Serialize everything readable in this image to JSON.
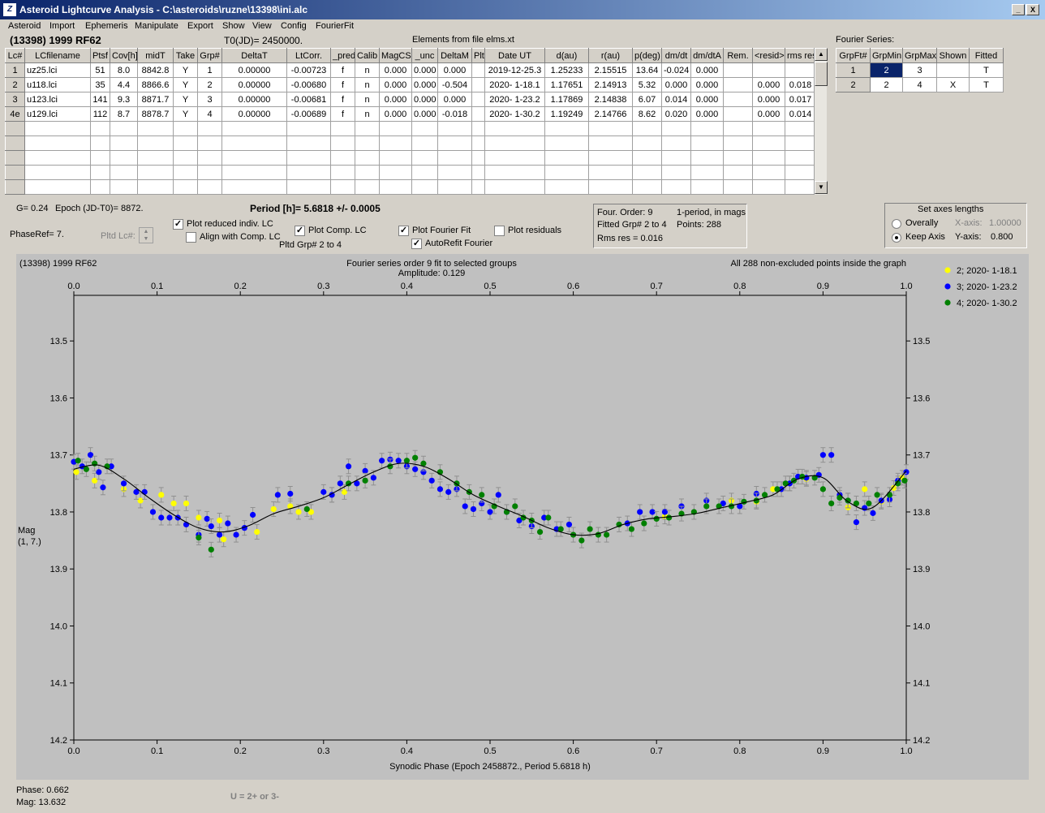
{
  "window": {
    "title": "Asteroid Lightcurve Analysis - C:\\asteroids\\ruzne\\13398\\ini.alc",
    "icon": "app-icon",
    "minimize": "_",
    "maximize": "□",
    "close": "X"
  },
  "menu": [
    "Asteroid",
    "Import",
    "Ephemeris",
    "Manipulate",
    "Export",
    "Show",
    "View",
    "Config",
    "FourierFit"
  ],
  "header": {
    "asteroid": "(13398) 1999 RF62",
    "t0": "T0(JD)= 2450000.",
    "elements": "Elements from file elms.xt",
    "fourier_series_label": "Fourier Series:"
  },
  "lc_table": {
    "columns": [
      "Lc#",
      "LCfilename",
      "Ptsf",
      "Cov[h]",
      "midT",
      "Take",
      "Grp#",
      "DeltaT",
      "LtCorr.",
      "_pred.",
      "Calib",
      "MagCS",
      "_unc",
      "DeltaM",
      "Plt",
      "Date UT",
      "d(au)",
      "r(au)",
      "p(deg)",
      "dm/dt",
      "dm/dtA",
      "Rem.",
      "<resid>",
      "rms res"
    ],
    "rows": [
      [
        "1",
        "uz25.lci",
        "51",
        "8.0",
        "8842.8",
        "Y",
        "1",
        "0.00000",
        "-0.00723",
        "f",
        "n",
        "0.000",
        "0.000",
        "0.000",
        "",
        "2019-12-25.3",
        "1.25233",
        "2.15515",
        "13.64",
        "-0.024",
        "0.000",
        "",
        "",
        ""
      ],
      [
        "2",
        "u118.lci",
        "35",
        "4.4",
        "8866.6",
        "Y",
        "2",
        "0.00000",
        "-0.00680",
        "f",
        "n",
        "0.000",
        "0.000",
        "-0.504",
        "",
        "2020- 1-18.1",
        "1.17651",
        "2.14913",
        "5.32",
        "0.000",
        "0.000",
        "",
        "0.000",
        "0.018"
      ],
      [
        "3",
        "u123.lci",
        "141",
        "9.3",
        "8871.7",
        "Y",
        "3",
        "0.00000",
        "-0.00681",
        "f",
        "n",
        "0.000",
        "0.000",
        "0.000",
        "",
        "2020- 1-23.2",
        "1.17869",
        "2.14838",
        "6.07",
        "0.014",
        "0.000",
        "",
        "0.000",
        "0.017"
      ],
      [
        "4e",
        "u129.lci",
        "112",
        "8.7",
        "8878.7",
        "Y",
        "4",
        "0.00000",
        "-0.00689",
        "f",
        "n",
        "0.000",
        "0.000",
        "-0.018",
        "",
        "2020- 1-30.2",
        "1.19249",
        "2.14766",
        "8.62",
        "0.020",
        "0.000",
        "",
        "0.000",
        "0.014"
      ]
    ],
    "empty_rows": 5
  },
  "fourier_table": {
    "columns": [
      "GrpFt#",
      "GrpMin",
      "GrpMax",
      "Shown",
      "Fitted"
    ],
    "rows": [
      [
        "1",
        "2",
        "3",
        "",
        "T"
      ],
      [
        "2",
        "2",
        "4",
        "X",
        "T"
      ]
    ]
  },
  "info": {
    "g": "G= 0.24",
    "epoch": "Epoch (JD-T0)= 8872.",
    "period": "Period [h]= 5.6818 +/- 0.0005",
    "phaseref": "PhaseRef= 7.",
    "pltd_lc": "Pltd Lc#:",
    "pltd_grp": "Pltd Grp#  2  to   4"
  },
  "checkboxes": [
    {
      "label": "Plot reduced indiv. LC",
      "checked": true
    },
    {
      "label": "Align with Comp. LC",
      "checked": false
    },
    {
      "label": "Plot Comp. LC",
      "checked": true
    },
    {
      "label": "Plot Fourier Fit",
      "checked": true
    },
    {
      "label": "AutoRefit Fourier",
      "checked": true
    },
    {
      "label": "Plot residuals",
      "checked": false
    }
  ],
  "fit_info": {
    "order": "Four. Order:  9",
    "fitted": "Fitted Grp# 2 to 4",
    "rms": "Rms res     = 0.016",
    "period_mode": "1-period, in mags",
    "points": "Points: 288"
  },
  "axes_box": {
    "title": "Set axes lengths",
    "overally": "Overally",
    "keep_axis": "Keep Axis",
    "x_label": "X-axis:",
    "x_value": "1.00000",
    "y_label": "Y-axis:",
    "y_value": "0.800",
    "selected": "Keep Axis"
  },
  "status": {
    "phase": "Phase:  0.662",
    "mag": "Mag:     13.632",
    "u_note": "U = 2+ or 3-"
  },
  "chart_data": {
    "type": "scatter",
    "title": "Fourier series order 9 fit to selected groups",
    "subtitle": "Amplitude: 0.129",
    "top_left_label": "(13398) 1999 RF62",
    "top_right_label": "All 288 non-excluded points inside the graph",
    "xlabel": "Synodic Phase (Epoch 2458872., Period 5.6818 h)",
    "ylabel": "Mag",
    "ylabel2": "(1, 7.)",
    "xlim": [
      0,
      1
    ],
    "ylim": [
      13.42,
      14.2
    ],
    "y_inverted": true,
    "x_ticks": [
      "0.0",
      "0.1",
      "0.2",
      "0.3",
      "0.4",
      "0.5",
      "0.6",
      "0.7",
      "0.8",
      "0.9",
      "1.0"
    ],
    "y_ticks": [
      "13.5",
      "13.6",
      "13.7",
      "13.8",
      "13.9",
      "14.0",
      "14.1",
      "14.2"
    ],
    "legend_position": "top-right",
    "fit_curve": {
      "color": "#000000",
      "points": [
        [
          0.0,
          13.725
        ],
        [
          0.03,
          13.718
        ],
        [
          0.06,
          13.742
        ],
        [
          0.09,
          13.775
        ],
        [
          0.12,
          13.805
        ],
        [
          0.15,
          13.828
        ],
        [
          0.18,
          13.835
        ],
        [
          0.21,
          13.824
        ],
        [
          0.24,
          13.803
        ],
        [
          0.27,
          13.79
        ],
        [
          0.3,
          13.775
        ],
        [
          0.33,
          13.752
        ],
        [
          0.36,
          13.73
        ],
        [
          0.39,
          13.715
        ],
        [
          0.42,
          13.72
        ],
        [
          0.45,
          13.742
        ],
        [
          0.48,
          13.77
        ],
        [
          0.51,
          13.79
        ],
        [
          0.54,
          13.808
        ],
        [
          0.57,
          13.828
        ],
        [
          0.6,
          13.84
        ],
        [
          0.63,
          13.838
        ],
        [
          0.66,
          13.822
        ],
        [
          0.69,
          13.812
        ],
        [
          0.72,
          13.808
        ],
        [
          0.75,
          13.802
        ],
        [
          0.78,
          13.792
        ],
        [
          0.81,
          13.782
        ],
        [
          0.84,
          13.77
        ],
        [
          0.87,
          13.742
        ],
        [
          0.9,
          13.74
        ],
        [
          0.93,
          13.782
        ],
        [
          0.96,
          13.792
        ],
        [
          1.0,
          13.728
        ]
      ]
    },
    "series": [
      {
        "name": "2; 2020- 1-18.1",
        "color": "#ffff00",
        "points": [
          [
            0.003,
            13.73
          ],
          [
            0.025,
            13.745
          ],
          [
            0.06,
            13.76
          ],
          [
            0.08,
            13.78
          ],
          [
            0.105,
            13.77
          ],
          [
            0.12,
            13.785
          ],
          [
            0.135,
            13.785
          ],
          [
            0.15,
            13.81
          ],
          [
            0.175,
            13.815
          ],
          [
            0.18,
            13.848
          ],
          [
            0.22,
            13.835
          ],
          [
            0.24,
            13.795
          ],
          [
            0.26,
            13.79
          ],
          [
            0.27,
            13.8
          ],
          [
            0.285,
            13.8
          ],
          [
            0.31,
            13.77
          ],
          [
            0.325,
            13.765
          ],
          [
            0.71,
            13.808
          ],
          [
            0.79,
            13.78
          ],
          [
            0.82,
            13.782
          ],
          [
            0.84,
            13.76
          ],
          [
            0.86,
            13.75
          ],
          [
            0.88,
            13.742
          ],
          [
            0.93,
            13.792
          ],
          [
            0.95,
            13.76
          ],
          [
            0.97,
            13.782
          ],
          [
            0.985,
            13.758
          ],
          [
            0.995,
            13.74
          ]
        ]
      },
      {
        "name": "3; 2020- 1-23.2",
        "color": "#0000ff",
        "points": [
          [
            0.0,
            13.712
          ],
          [
            0.01,
            13.72
          ],
          [
            0.02,
            13.7
          ],
          [
            0.03,
            13.73
          ],
          [
            0.035,
            13.757
          ],
          [
            0.045,
            13.72
          ],
          [
            0.06,
            13.75
          ],
          [
            0.075,
            13.765
          ],
          [
            0.085,
            13.765
          ],
          [
            0.095,
            13.8
          ],
          [
            0.105,
            13.81
          ],
          [
            0.115,
            13.81
          ],
          [
            0.125,
            13.81
          ],
          [
            0.135,
            13.822
          ],
          [
            0.15,
            13.84
          ],
          [
            0.16,
            13.812
          ],
          [
            0.165,
            13.825
          ],
          [
            0.175,
            13.84
          ],
          [
            0.185,
            13.82
          ],
          [
            0.195,
            13.84
          ],
          [
            0.205,
            13.828
          ],
          [
            0.215,
            13.805
          ],
          [
            0.245,
            13.77
          ],
          [
            0.26,
            13.768
          ],
          [
            0.3,
            13.765
          ],
          [
            0.31,
            13.77
          ],
          [
            0.32,
            13.75
          ],
          [
            0.33,
            13.72
          ],
          [
            0.34,
            13.75
          ],
          [
            0.35,
            13.728
          ],
          [
            0.36,
            13.74
          ],
          [
            0.37,
            13.71
          ],
          [
            0.38,
            13.708
          ],
          [
            0.39,
            13.71
          ],
          [
            0.4,
            13.72
          ],
          [
            0.41,
            13.725
          ],
          [
            0.42,
            13.73
          ],
          [
            0.43,
            13.745
          ],
          [
            0.44,
            13.76
          ],
          [
            0.45,
            13.765
          ],
          [
            0.46,
            13.76
          ],
          [
            0.47,
            13.79
          ],
          [
            0.48,
            13.795
          ],
          [
            0.49,
            13.785
          ],
          [
            0.5,
            13.8
          ],
          [
            0.51,
            13.77
          ],
          [
            0.52,
            13.8
          ],
          [
            0.535,
            13.815
          ],
          [
            0.55,
            13.825
          ],
          [
            0.565,
            13.81
          ],
          [
            0.58,
            13.83
          ],
          [
            0.595,
            13.822
          ],
          [
            0.665,
            13.82
          ],
          [
            0.68,
            13.8
          ],
          [
            0.695,
            13.8
          ],
          [
            0.71,
            13.8
          ],
          [
            0.73,
            13.79
          ],
          [
            0.76,
            13.78
          ],
          [
            0.78,
            13.785
          ],
          [
            0.8,
            13.79
          ],
          [
            0.82,
            13.768
          ],
          [
            0.85,
            13.76
          ],
          [
            0.86,
            13.75
          ],
          [
            0.87,
            13.738
          ],
          [
            0.88,
            13.74
          ],
          [
            0.895,
            13.735
          ],
          [
            0.9,
            13.7
          ],
          [
            0.91,
            13.7
          ],
          [
            0.92,
            13.77
          ],
          [
            0.93,
            13.78
          ],
          [
            0.94,
            13.818
          ],
          [
            0.95,
            13.793
          ],
          [
            0.96,
            13.802
          ],
          [
            0.97,
            13.78
          ],
          [
            0.98,
            13.778
          ],
          [
            0.99,
            13.745
          ],
          [
            1.0,
            13.73
          ]
        ]
      },
      {
        "name": "4; 2020- 1-30.2",
        "color": "#008000",
        "points": [
          [
            0.005,
            13.71
          ],
          [
            0.015,
            13.725
          ],
          [
            0.025,
            13.715
          ],
          [
            0.04,
            13.72
          ],
          [
            0.15,
            13.845
          ],
          [
            0.165,
            13.866
          ],
          [
            0.28,
            13.795
          ],
          [
            0.33,
            13.75
          ],
          [
            0.35,
            13.745
          ],
          [
            0.38,
            13.72
          ],
          [
            0.4,
            13.71
          ],
          [
            0.41,
            13.705
          ],
          [
            0.42,
            13.715
          ],
          [
            0.44,
            13.73
          ],
          [
            0.46,
            13.75
          ],
          [
            0.475,
            13.765
          ],
          [
            0.49,
            13.77
          ],
          [
            0.505,
            13.79
          ],
          [
            0.52,
            13.8
          ],
          [
            0.53,
            13.79
          ],
          [
            0.54,
            13.81
          ],
          [
            0.55,
            13.815
          ],
          [
            0.56,
            13.835
          ],
          [
            0.57,
            13.81
          ],
          [
            0.585,
            13.83
          ],
          [
            0.6,
            13.84
          ],
          [
            0.61,
            13.85
          ],
          [
            0.62,
            13.83
          ],
          [
            0.63,
            13.84
          ],
          [
            0.64,
            13.84
          ],
          [
            0.655,
            13.822
          ],
          [
            0.67,
            13.83
          ],
          [
            0.685,
            13.82
          ],
          [
            0.7,
            13.812
          ],
          [
            0.715,
            13.81
          ],
          [
            0.73,
            13.803
          ],
          [
            0.745,
            13.8
          ],
          [
            0.76,
            13.79
          ],
          [
            0.775,
            13.79
          ],
          [
            0.79,
            13.79
          ],
          [
            0.805,
            13.782
          ],
          [
            0.82,
            13.78
          ],
          [
            0.83,
            13.77
          ],
          [
            0.845,
            13.76
          ],
          [
            0.855,
            13.75
          ],
          [
            0.865,
            13.745
          ],
          [
            0.875,
            13.738
          ],
          [
            0.89,
            13.74
          ],
          [
            0.9,
            13.76
          ],
          [
            0.91,
            13.785
          ],
          [
            0.92,
            13.775
          ],
          [
            0.93,
            13.78
          ],
          [
            0.94,
            13.785
          ],
          [
            0.955,
            13.785
          ],
          [
            0.965,
            13.77
          ],
          [
            0.98,
            13.77
          ],
          [
            0.99,
            13.75
          ],
          [
            0.998,
            13.745
          ]
        ]
      }
    ]
  }
}
